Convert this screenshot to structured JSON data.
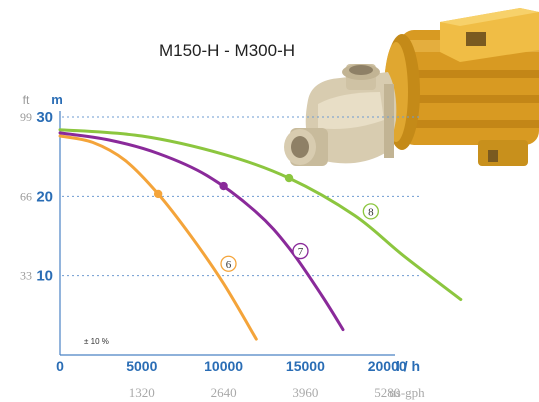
{
  "chart_data": {
    "type": "line",
    "title": "M150-H - M300-H",
    "y_unit_ft": "ft",
    "y_unit_m": "m",
    "x_unit": "l / h",
    "x2_unit": "us-gph",
    "tolerance_note": "± 10 %",
    "xlim": [
      0,
      25000
    ],
    "ylim": [
      0,
      30
    ],
    "x_ticks": [
      {
        "value": 0,
        "label": "0"
      },
      {
        "value": 5000,
        "label": "5000"
      },
      {
        "value": 10000,
        "label": "10000"
      },
      {
        "value": 15000,
        "label": "15000"
      },
      {
        "value": 20000,
        "label": "20000"
      }
    ],
    "x2_ticks": [
      {
        "value": 5000,
        "label": "1320"
      },
      {
        "value": 10000,
        "label": "2640"
      },
      {
        "value": 15000,
        "label": "3960"
      },
      {
        "value": 20000,
        "label": "5280"
      }
    ],
    "y_ticks_m": [
      {
        "value": 10,
        "label": "10"
      },
      {
        "value": 20,
        "label": "20"
      },
      {
        "value": 30,
        "label": "30"
      }
    ],
    "y_ticks_ft": [
      {
        "value": 10,
        "label": "33"
      },
      {
        "value": 20,
        "label": "66"
      },
      {
        "value": 30,
        "label": "99"
      }
    ],
    "series": [
      {
        "name": "6",
        "color": "#f4a43a",
        "points": [
          [
            0,
            27.6
          ],
          [
            2000,
            26.8
          ],
          [
            4000,
            24.5
          ],
          [
            6000,
            20.3
          ],
          [
            8000,
            15.0
          ],
          [
            10000,
            9.0
          ],
          [
            12000,
            2.0
          ]
        ],
        "marker": [
          6000,
          20.3
        ],
        "label_at": [
          10300,
          11.5
        ]
      },
      {
        "name": "7",
        "color": "#8a2a9a",
        "points": [
          [
            0,
            28.0
          ],
          [
            3000,
            27.1
          ],
          [
            6000,
            25.4
          ],
          [
            9000,
            22.6
          ],
          [
            12000,
            18.0
          ],
          [
            14000,
            13.5
          ],
          [
            16000,
            7.5
          ],
          [
            17300,
            3.2
          ]
        ],
        "marker": [
          10000,
          21.3
        ],
        "label_at": [
          14700,
          13.1
        ]
      },
      {
        "name": "8",
        "color": "#8cc63f",
        "points": [
          [
            0,
            28.4
          ],
          [
            5000,
            27.6
          ],
          [
            10000,
            25.3
          ],
          [
            14000,
            22.3
          ],
          [
            18000,
            17.6
          ],
          [
            21000,
            12.5
          ],
          [
            24500,
            7.0
          ]
        ],
        "marker": [
          14000,
          22.3
        ],
        "label_at": [
          19000,
          18.1
        ]
      }
    ]
  }
}
